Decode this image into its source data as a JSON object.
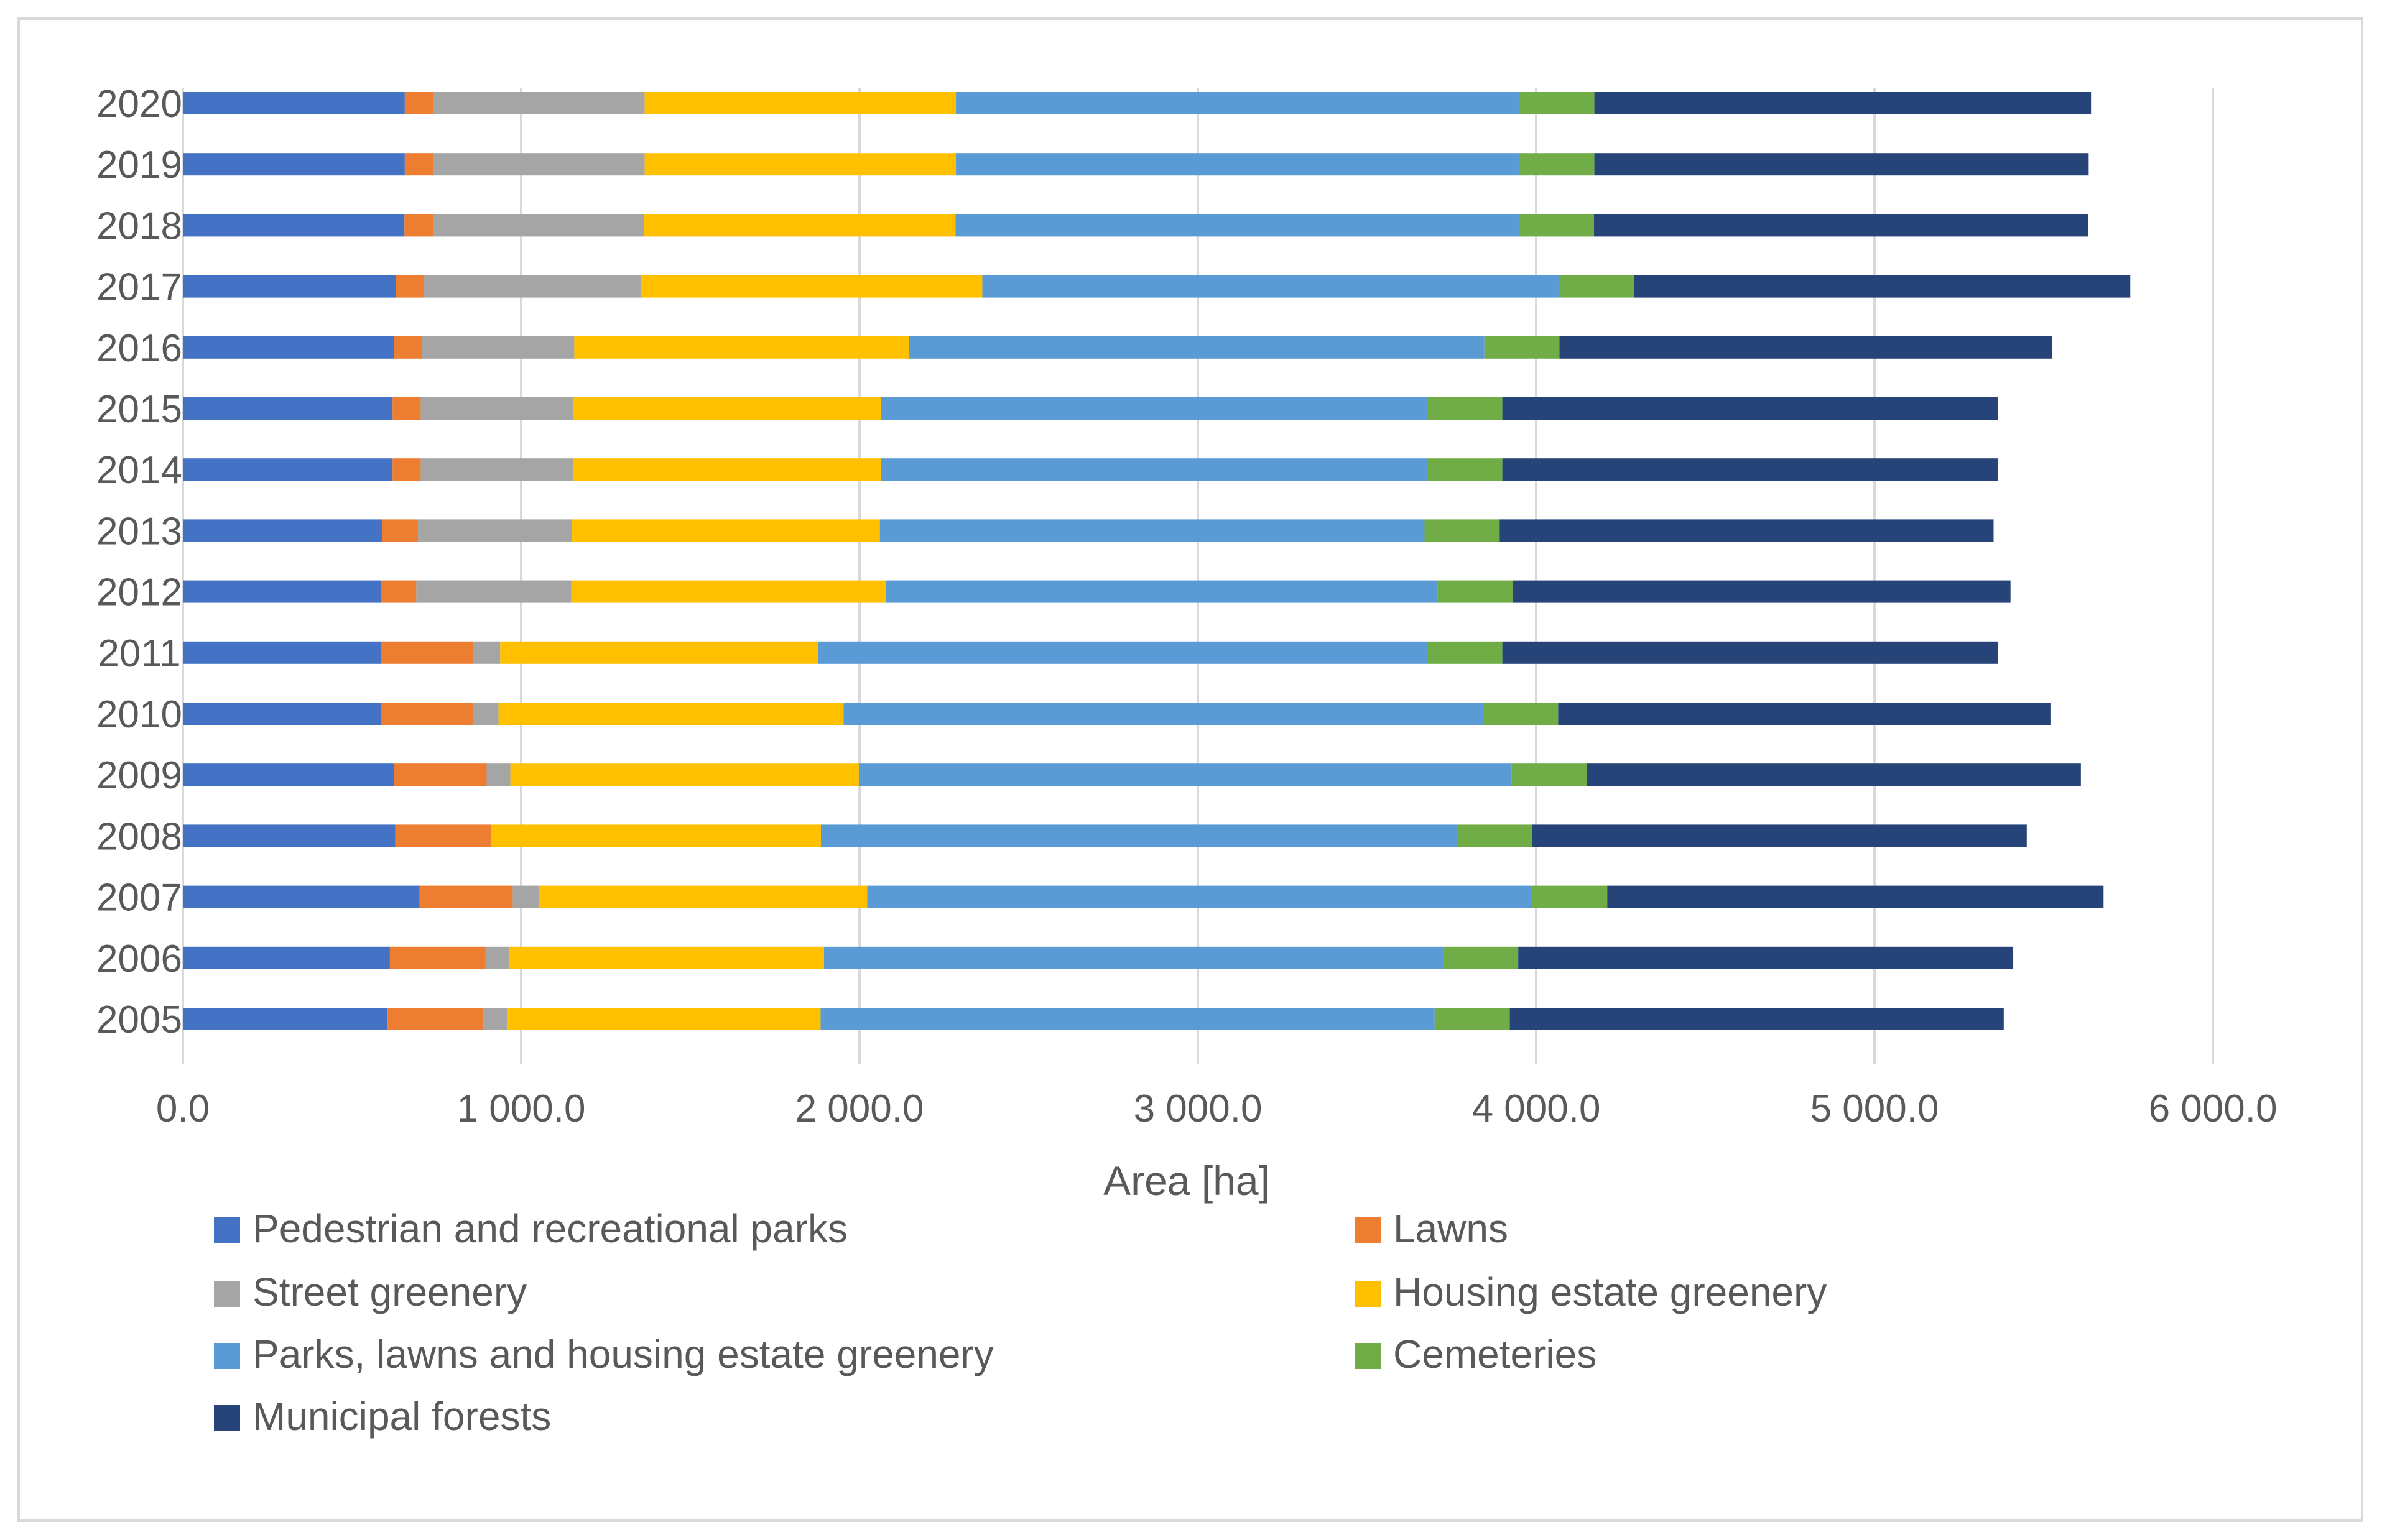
{
  "chart_data": {
    "type": "bar",
    "orientation": "horizontal",
    "stacked": true,
    "title": "",
    "xlabel": "Area [ha]",
    "ylabel": "",
    "xlim": [
      0,
      6000
    ],
    "xticks": [
      0,
      1000,
      2000,
      3000,
      4000,
      5000,
      6000
    ],
    "xtick_labels": [
      "0.0",
      "1 000.0",
      "2 000.0",
      "3 000.0",
      "4 000.0",
      "5 000.0",
      "6 000.0"
    ],
    "grid": "vertical",
    "legend_position": "bottom",
    "categories": [
      "2020",
      "2019",
      "2018",
      "2017",
      "2016",
      "2015",
      "2014",
      "2013",
      "2012",
      "2011",
      "2010",
      "2009",
      "2008",
      "2007",
      "2006",
      "2005"
    ],
    "series": [
      {
        "name": "Pedestrian and recreational parks",
        "color": "#4472c4",
        "values": [
          656,
          656,
          655,
          630,
          624,
          620,
          620,
          590,
          585,
          585,
          585,
          625,
          628,
          700,
          612,
          605
        ]
      },
      {
        "name": "Lawns",
        "color": "#ed7d31",
        "values": [
          84,
          84,
          84,
          83,
          83,
          83,
          83,
          105,
          105,
          273,
          273,
          273,
          283,
          275,
          283,
          283
        ]
      },
      {
        "name": "Street greenery",
        "color": "#a5a5a5",
        "values": [
          625,
          625,
          625,
          640,
          450,
          450,
          450,
          455,
          458,
          80,
          75,
          70,
          0,
          78,
          70,
          72
        ]
      },
      {
        "name": "Housing estate greenery",
        "color": "#ffc000",
        "values": [
          920,
          920,
          920,
          1010,
          990,
          910,
          910,
          910,
          930,
          940,
          1020,
          1030,
          975,
          970,
          930,
          925
        ]
      },
      {
        "name": "Parks, lawns and housing estate greenery",
        "color": "#5b9bd5",
        "values": [
          1665,
          1665,
          1665,
          1705,
          1700,
          1615,
          1615,
          1610,
          1630,
          1800,
          1890,
          1930,
          1880,
          1965,
          1830,
          1815
        ]
      },
      {
        "name": "Cemeteries",
        "color": "#70ad47",
        "values": [
          222,
          222,
          222,
          222,
          222,
          222,
          222,
          222,
          222,
          222,
          222,
          222,
          222,
          222,
          222,
          222
        ]
      },
      {
        "name": "Municipal forests",
        "color": "#264478",
        "values": [
          1468,
          1461,
          1461,
          1466,
          1455,
          1465,
          1465,
          1460,
          1472,
          1465,
          1455,
          1460,
          1462,
          1467,
          1463,
          1460
        ]
      }
    ]
  }
}
